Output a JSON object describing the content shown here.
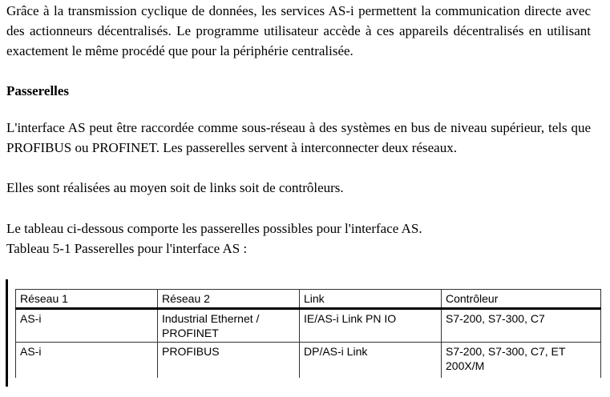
{
  "paragraphs": {
    "intro": "Grâce à la transmission cyclique de données, les services AS-i permettent la communication directe avec des actionneurs décentralisés. Le programme utilisateur accède à ces appareils décentralisés en utilisant exactement le même procédé que pour la périphérie centralisée.",
    "heading": "Passerelles",
    "p1": "L'interface AS peut être raccordée comme sous-réseau à des systèmes en bus de niveau supérieur, tels que PROFIBUS ou PROFINET. Les passerelles servent à interconnecter deux réseaux.",
    "p2": "Elles sont réalisées au moyen soit de links soit de contrôleurs.",
    "p3": "Le tableau ci-dessous comporte les passerelles possibles pour l'interface AS.",
    "caption": "Tableau 5-1 Passerelles pour l'interface AS :"
  },
  "table": {
    "headers": [
      "Réseau 1",
      "Réseau 2",
      "Link",
      "Contrôleur"
    ],
    "rows": [
      [
        "AS-i",
        "Industrial Ethernet / PROFINET",
        "IE/AS-i Link PN IO",
        "S7-200, S7-300, C7"
      ],
      [
        "AS-i",
        "PROFIBUS",
        "DP/AS-i Link",
        "S7-200, S7-300, C7, ET 200X/M"
      ]
    ]
  }
}
